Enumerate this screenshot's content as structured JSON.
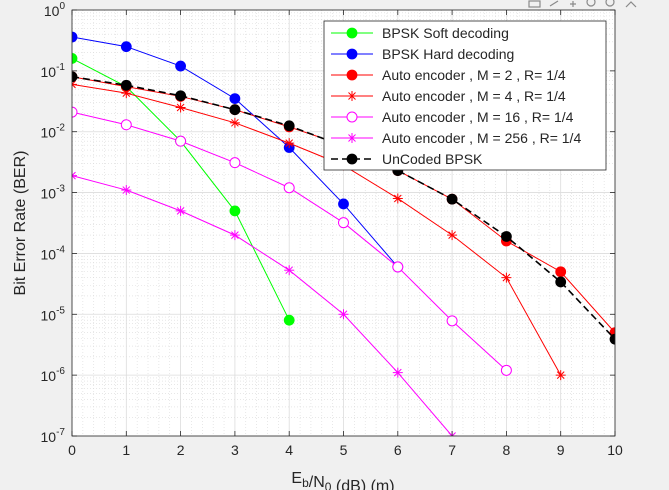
{
  "toolbar": {
    "icons": [
      "export-icon",
      "brush-icon",
      "pan-icon",
      "zoom-in-icon",
      "zoom-out-icon",
      "home-icon"
    ]
  },
  "chart_data": {
    "type": "line",
    "title": "",
    "xlabel": "E_b/N_0 (dB) (m)",
    "ylabel": "Bit Error Rate (BER)",
    "xlim": [
      0,
      10
    ],
    "ylim": [
      1e-07,
      1
    ],
    "yscale": "log",
    "grid": true,
    "minor_grid": true,
    "legend_position": "top-right",
    "x_ticks": [
      "0",
      "1",
      "2",
      "3",
      "4",
      "5",
      "6",
      "7",
      "8",
      "9",
      "10"
    ],
    "y_ticks": [
      {
        "base": "10",
        "exp": "0",
        "value": 1
      },
      {
        "base": "10",
        "exp": "-1",
        "value": 0.1
      },
      {
        "base": "10",
        "exp": "-2",
        "value": 0.01
      },
      {
        "base": "10",
        "exp": "-3",
        "value": 0.001
      },
      {
        "base": "10",
        "exp": "-4",
        "value": 0.0001
      },
      {
        "base": "10",
        "exp": "-5",
        "value": 1e-05
      },
      {
        "base": "10",
        "exp": "-6",
        "value": 1e-06
      },
      {
        "base": "10",
        "exp": "-7",
        "value": 1e-07
      }
    ],
    "series": [
      {
        "name": "BPSK Soft decoding",
        "color": "#00ff00",
        "marker": "filled-circle",
        "line": "solid",
        "x": [
          0,
          1,
          2,
          3,
          4
        ],
        "y": [
          0.16,
          0.055,
          0.007,
          0.0005,
          8e-06
        ]
      },
      {
        "name": "BPSK Hard decoding",
        "color": "#0000ff",
        "marker": "filled-circle",
        "line": "solid",
        "x": [
          0,
          1,
          2,
          3,
          4,
          5,
          6
        ],
        "y": [
          0.36,
          0.25,
          0.12,
          0.035,
          0.0055,
          0.00065,
          6e-05
        ]
      },
      {
        "name": "Auto encoder , M = 2 , R= 1/4",
        "color": "#ff0000",
        "marker": "filled-circle",
        "line": "solid",
        "x": [
          0,
          1,
          2,
          3,
          4,
          5,
          6,
          7,
          8,
          9,
          10
        ],
        "y": [
          0.08,
          0.055,
          0.038,
          0.023,
          0.012,
          0.006,
          0.0023,
          0.00078,
          0.00016,
          5e-05,
          5e-06
        ]
      },
      {
        "name": "Auto encoder , M = 4 , R= 1/4",
        "color": "#ff0000",
        "marker": "asterisk",
        "line": "solid",
        "x": [
          0,
          1,
          2,
          3,
          4,
          5,
          6,
          7,
          8,
          9
        ],
        "y": [
          0.06,
          0.043,
          0.025,
          0.014,
          0.0065,
          0.0028,
          0.0008,
          0.0002,
          4e-05,
          1e-06
        ]
      },
      {
        "name": "Auto encoder , M = 16 , R= 1/4",
        "color": "#ff00ff",
        "marker": "open-circle",
        "line": "solid",
        "x": [
          0,
          1,
          2,
          3,
          4,
          5,
          6,
          7,
          8
        ],
        "y": [
          0.021,
          0.013,
          0.007,
          0.0031,
          0.0012,
          0.00032,
          6e-05,
          7.8e-06,
          1.2e-06
        ]
      },
      {
        "name": "Auto encoder , M = 256 , R= 1/4",
        "color": "#ff00ff",
        "marker": "asterisk",
        "line": "solid",
        "x": [
          0,
          1,
          2,
          3,
          4,
          5,
          6,
          7
        ],
        "y": [
          0.0019,
          0.0011,
          0.0005,
          0.0002,
          5.3e-05,
          1e-05,
          1.1e-06,
          1e-07
        ]
      },
      {
        "name": "UnCoded BPSK",
        "color": "#000000",
        "marker": "filled-circle",
        "line": "dashed",
        "x": [
          0,
          1,
          2,
          3,
          4,
          5,
          6,
          7,
          8,
          9,
          10
        ],
        "y": [
          0.08,
          0.058,
          0.039,
          0.023,
          0.0125,
          0.0058,
          0.0023,
          0.00078,
          0.00019,
          3.4e-05,
          3.9e-06
        ]
      }
    ]
  }
}
